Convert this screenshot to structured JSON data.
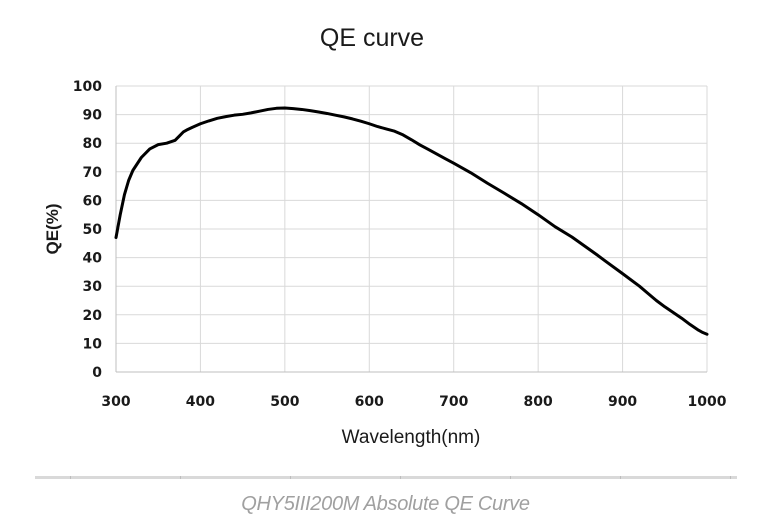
{
  "chart_data": {
    "type": "line",
    "title": "QE curve",
    "xlabel": "Wavelength(nm)",
    "ylabel": "QE(%)",
    "xlim": [
      300,
      1000
    ],
    "ylim": [
      0,
      100
    ],
    "xticks": [
      300,
      400,
      500,
      600,
      700,
      800,
      900,
      1000
    ],
    "yticks": [
      0,
      10,
      20,
      30,
      40,
      50,
      60,
      70,
      80,
      90,
      100
    ],
    "grid": true,
    "series": [
      {
        "name": "QE",
        "color": "#000000",
        "x": [
          300,
          305,
          310,
          315,
          320,
          330,
          340,
          350,
          360,
          370,
          375,
          380,
          385,
          390,
          400,
          410,
          420,
          430,
          440,
          450,
          460,
          470,
          480,
          490,
          500,
          510,
          520,
          530,
          540,
          550,
          560,
          570,
          580,
          590,
          600,
          610,
          620,
          630,
          640,
          650,
          660,
          670,
          680,
          690,
          700,
          720,
          740,
          760,
          780,
          800,
          820,
          840,
          860,
          870,
          880,
          900,
          920,
          930,
          940,
          950,
          960,
          970,
          980,
          990,
          995,
          1000
        ],
        "y": [
          47,
          55,
          62,
          67,
          70.5,
          75,
          78,
          79.5,
          80,
          81,
          82.5,
          84,
          84.8,
          85.5,
          86.8,
          87.8,
          88.7,
          89.3,
          89.8,
          90.1,
          90.6,
          91.2,
          91.8,
          92.2,
          92.3,
          92.1,
          91.8,
          91.4,
          90.9,
          90.4,
          89.8,
          89.2,
          88.5,
          87.7,
          86.8,
          85.8,
          85,
          84.2,
          82.9,
          81.2,
          79.4,
          77.8,
          76.2,
          74.6,
          73,
          69.7,
          66,
          62.5,
          58.9,
          55,
          50.8,
          47.2,
          43,
          40.9,
          38.7,
          34.4,
          30,
          27.5,
          25,
          22.8,
          20.8,
          18.8,
          16.6,
          14.6,
          13.8,
          13.2
        ]
      }
    ]
  },
  "caption": "QHY5III200M Absolute QE Curve"
}
